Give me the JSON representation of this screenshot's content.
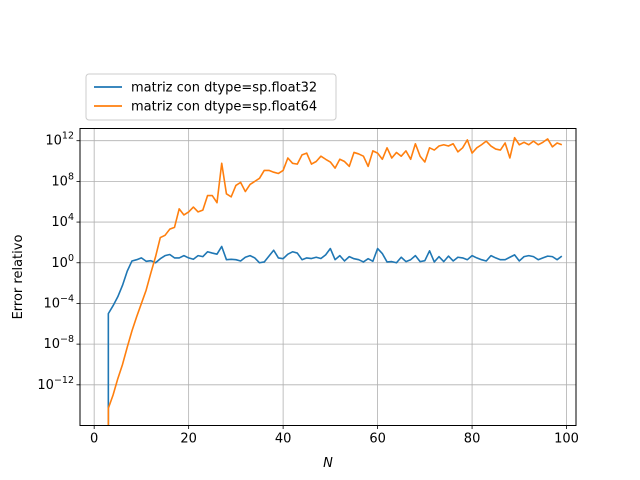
{
  "chart_data": {
    "type": "line",
    "title": "",
    "xlabel": "N",
    "ylabel": "Error relativo",
    "xlim": [
      -3,
      102
    ],
    "ylim_log10": [
      -16,
      13.2
    ],
    "y_scale": "log",
    "grid": true,
    "legend_position": "above-left",
    "x_ticks": [
      0,
      20,
      40,
      60,
      80,
      100
    ],
    "y_ticks": [
      {
        "base": "10",
        "exp": "12",
        "log10": 12
      },
      {
        "base": "10",
        "exp": "8",
        "log10": 8
      },
      {
        "base": "10",
        "exp": "4",
        "log10": 4
      },
      {
        "base": "10",
        "exp": "0",
        "log10": 0
      },
      {
        "base": "10",
        "exp": "−4",
        "log10": -4
      },
      {
        "base": "10",
        "exp": "−8",
        "log10": -8
      },
      {
        "base": "10",
        "exp": "−12",
        "log10": -12
      }
    ],
    "series": [
      {
        "name": "matriz con dtype=sp.float32",
        "color": "#1f77b4",
        "x": [
          3,
          4,
          5,
          6,
          7,
          8,
          9,
          10,
          11,
          12,
          13,
          14,
          15,
          16,
          17,
          18,
          19,
          20,
          21,
          22,
          23,
          24,
          25,
          26,
          27,
          28,
          29,
          30,
          31,
          32,
          33,
          34,
          35,
          36,
          37,
          38,
          39,
          40,
          41,
          42,
          43,
          44,
          45,
          46,
          47,
          48,
          49,
          50,
          51,
          52,
          53,
          54,
          55,
          56,
          57,
          58,
          59,
          60,
          61,
          62,
          63,
          64,
          65,
          66,
          67,
          68,
          69,
          70,
          71,
          72,
          73,
          74,
          75,
          76,
          77,
          78,
          79,
          80,
          81,
          82,
          83,
          84,
          85,
          86,
          87,
          88,
          89,
          90,
          91,
          92,
          93,
          94,
          95,
          96,
          97,
          98,
          99
        ],
        "y": [
          1e-05,
          6e-05,
          0.00045,
          0.006,
          0.15,
          1.5,
          2,
          3,
          1.4,
          1.6,
          1,
          2.5,
          5,
          6.5,
          3,
          3,
          5,
          3,
          2.2,
          5,
          4,
          12,
          9,
          7,
          40,
          2,
          2.2,
          2,
          1.5,
          3.5,
          5,
          3,
          1,
          1.2,
          4.5,
          17,
          3,
          2.5,
          7,
          12,
          9,
          2,
          3,
          2.6,
          3.5,
          2.6,
          6,
          25,
          2,
          5,
          1.5,
          4,
          2.5,
          2,
          1.2,
          2.5,
          1.4,
          25,
          8,
          1.2,
          1.3,
          1,
          3.5,
          1.3,
          2,
          5,
          1.3,
          1.6,
          15,
          1.2,
          4,
          1.3,
          4.5,
          1.5,
          3.5,
          3,
          2,
          5,
          3,
          2,
          1.5,
          5,
          3,
          2,
          2,
          3.5,
          6,
          1.5,
          4,
          5,
          4,
          2,
          3,
          4.5,
          4,
          2,
          4.5
        ]
      },
      {
        "name": "matriz con dtype=sp.float64",
        "color": "#ff7f0e",
        "x": [
          3,
          4,
          5,
          6,
          7,
          8,
          9,
          10,
          11,
          12,
          13,
          14,
          15,
          16,
          17,
          18,
          19,
          20,
          21,
          22,
          23,
          24,
          25,
          26,
          27,
          28,
          29,
          30,
          31,
          32,
          33,
          34,
          35,
          36,
          37,
          38,
          39,
          40,
          41,
          42,
          43,
          44,
          45,
          46,
          47,
          48,
          49,
          50,
          51,
          52,
          53,
          54,
          55,
          56,
          57,
          58,
          59,
          60,
          61,
          62,
          63,
          64,
          65,
          66,
          67,
          68,
          69,
          70,
          71,
          72,
          73,
          74,
          75,
          76,
          77,
          78,
          79,
          80,
          81,
          82,
          83,
          84,
          85,
          86,
          87,
          88,
          89,
          90,
          91,
          92,
          93,
          94,
          95,
          96,
          97,
          98,
          99
        ],
        "y": [
          5e-15,
          1e-13,
          4e-12,
          1e-10,
          5e-09,
          2e-07,
          5e-06,
          0.0001,
          0.002,
          0.1,
          4,
          300,
          500,
          2000,
          3000,
          200000,
          50000,
          100000,
          300000,
          100000,
          150000,
          4000000,
          4000000,
          800000,
          6000000000.0,
          6000000.0,
          3000000.0,
          40000000.0,
          80000000.0,
          10000000.0,
          50000000.0,
          100000000.0,
          200000000.0,
          1200000000.0,
          1200000000.0,
          800000000.0,
          600000000.0,
          1200000000.0,
          20000000000.0,
          6000000000.0,
          5000000000.0,
          40000000000.0,
          60000000000.0,
          5000000000.0,
          9000000000.0,
          30000000000.0,
          15000000000.0,
          8000000000.0,
          2000000000.0,
          15000000000.0,
          9000000000.0,
          3000000000.0,
          70000000000.0,
          50000000000.0,
          30000000000.0,
          3000000000.0,
          100000000000.0,
          60000000000.0,
          15000000000.0,
          200000000000.0,
          20000000000.0,
          70000000000.0,
          30000000000.0,
          100000000000.0,
          15000000000.0,
          500000000000.0,
          30000000000.0,
          8000000000.0,
          200000000000.0,
          120000000000.0,
          300000000000.0,
          400000000000.0,
          300000000000.0,
          500000000000.0,
          80000000000.0,
          200000000000.0,
          1200000000000.0,
          60000000000.0,
          200000000000.0,
          400000000000.0,
          900000000000.0,
          300000000000.0,
          150000000000.0,
          120000000000.0,
          600000000000.0,
          20000000000.0,
          2000000000000.0,
          400000000000.0,
          700000000000.0,
          400000000000.0,
          900000000000.0,
          400000000000.0,
          700000000000.0,
          1500000000000.0,
          250000000000.0,
          600000000000.0,
          400000000000.0
        ]
      }
    ]
  }
}
